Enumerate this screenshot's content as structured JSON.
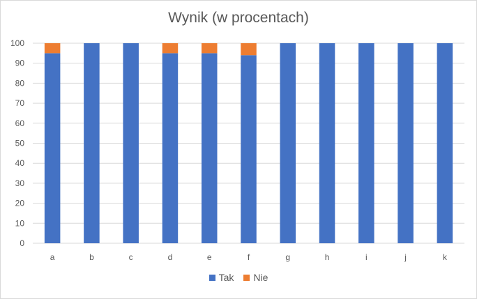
{
  "chart_data": {
    "type": "bar",
    "stacked": true,
    "title": "Wynik (w procentach)",
    "xlabel": "",
    "ylabel": "",
    "categories": [
      "a",
      "b",
      "c",
      "d",
      "e",
      "f",
      "g",
      "h",
      "i",
      "j",
      "k"
    ],
    "series": [
      {
        "name": "Tak",
        "color": "#4472C4",
        "values": [
          95,
          100,
          100,
          95,
          95,
          94,
          100,
          100,
          100,
          100,
          100
        ]
      },
      {
        "name": "Nie",
        "color": "#ED7D31",
        "values": [
          5,
          0,
          0,
          5,
          5,
          6,
          0,
          0,
          0,
          0,
          0
        ]
      }
    ],
    "ylim": [
      0,
      100
    ],
    "yticks": [
      0,
      10,
      20,
      30,
      40,
      50,
      60,
      70,
      80,
      90,
      100
    ],
    "grid": true,
    "legend_position": "bottom"
  }
}
